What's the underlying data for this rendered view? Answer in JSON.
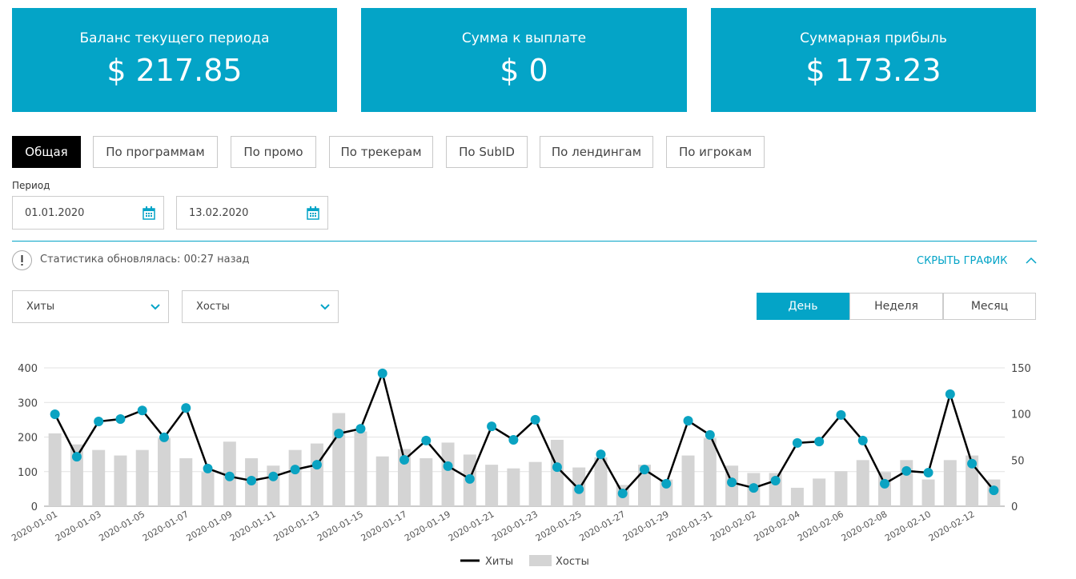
{
  "cards": [
    {
      "title": "Баланс текущего периода",
      "value": "$ 217.85"
    },
    {
      "title": "Сумма к выплате",
      "value": "$ 0"
    },
    {
      "title": "Суммарная прибыль",
      "value": "$ 173.23"
    }
  ],
  "tabs": [
    "Общая",
    "По программам",
    "По промо",
    "По трекерам",
    "По SubID",
    "По лендингам",
    "По игрокам"
  ],
  "period": {
    "label": "Период",
    "from": "01.01.2020",
    "to": "13.02.2020"
  },
  "status": "Статистика обновлялась: 00:27 назад",
  "hide_chart": "СКРЫТЬ ГРАФИК",
  "selects": [
    "Хиты",
    "Хосты"
  ],
  "ranges": [
    "День",
    "Неделя",
    "Месяц"
  ],
  "chart_data": {
    "type": "combo",
    "categories": [
      "2020-01-01",
      null,
      "2020-01-03",
      null,
      "2020-01-05",
      null,
      "2020-01-07",
      null,
      "2020-01-09",
      null,
      "2020-01-11",
      null,
      "2020-01-13",
      null,
      "2020-01-15",
      null,
      "2020-01-17",
      null,
      "2020-01-19",
      null,
      "2020-01-21",
      null,
      "2020-01-23",
      null,
      "2020-01-25",
      null,
      "2020-01-27",
      null,
      "2020-01-29",
      null,
      "2020-01-31",
      null,
      "2020-02-02",
      null,
      "2020-02-04",
      null,
      "2020-02-06",
      null,
      "2020-02-08",
      null,
      "2020-02-10",
      null,
      "2020-02-12",
      null
    ],
    "series": [
      {
        "name": "Хиты",
        "type": "line",
        "color": "#000000",
        "marker_color": "#0aa3c2",
        "values": [
          266,
          143,
          245,
          252,
          277,
          199,
          284,
          109,
          86,
          74,
          86,
          106,
          120,
          210,
          224,
          384,
          134,
          190,
          116,
          79,
          231,
          192,
          250,
          113,
          49,
          150,
          37,
          106,
          65,
          247,
          206,
          69,
          53,
          74,
          183,
          187,
          264,
          190,
          65,
          102,
          97,
          324,
          123,
          46
        ]
      },
      {
        "name": "Хосты",
        "type": "bar",
        "color": "#d4d4d4",
        "axis": "y2",
        "values": [
          79,
          67,
          61,
          55,
          61,
          74,
          52,
          37,
          70,
          52,
          44,
          61,
          68,
          101,
          81,
          54,
          62,
          52,
          69,
          56,
          45,
          41,
          48,
          72,
          42,
          53,
          23,
          45,
          29,
          55,
          74,
          44,
          36,
          36,
          20,
          30,
          38,
          50,
          37,
          50,
          29,
          50,
          55,
          29
        ]
      }
    ],
    "ylim": [
      0,
      400
    ],
    "yticks": [
      0,
      100,
      200,
      300,
      400
    ],
    "y2lim": [
      0,
      150
    ],
    "y2ticks": [
      0,
      50,
      100,
      150
    ],
    "grid": true,
    "legend": "bottom"
  }
}
